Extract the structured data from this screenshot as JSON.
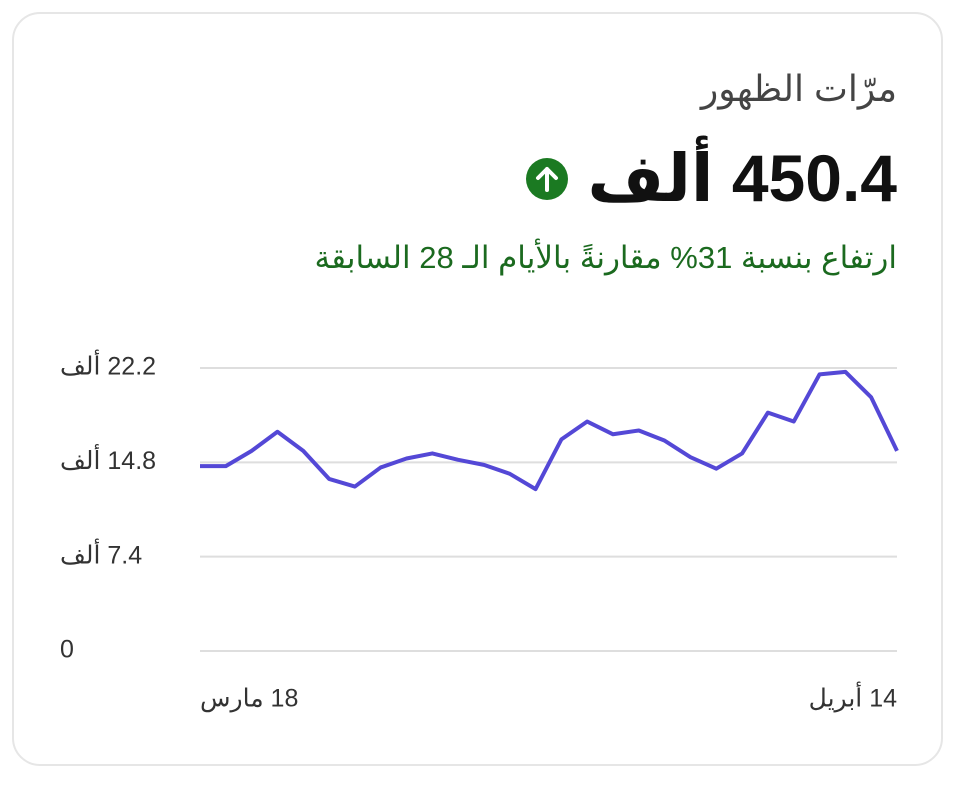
{
  "chart_data": {
    "type": "line",
    "title": "مرّات الظهور",
    "total": "450.4 ألف",
    "change_text": "ارتفاع بنسبة 31% مقارنةً بالأيام الـ 28 السابقة",
    "categories": [
      "18 مارس",
      null,
      null,
      null,
      null,
      null,
      null,
      null,
      null,
      null,
      null,
      null,
      null,
      null,
      null,
      null,
      null,
      null,
      null,
      null,
      null,
      null,
      null,
      null,
      null,
      null,
      null,
      "14 أبريل"
    ],
    "series": [
      {
        "name": "مرّات الظهور",
        "color": "#5448d6",
        "values": [
          14.5,
          14.5,
          15.7,
          17.2,
          15.7,
          13.5,
          12.9,
          14.4,
          15.1,
          15.5,
          15.0,
          14.6,
          13.9,
          12.7,
          16.6,
          18.0,
          17.0,
          17.3,
          16.5,
          15.2,
          14.3,
          15.5,
          18.7,
          18.0,
          21.7,
          21.9,
          19.9,
          15.7
        ]
      }
    ],
    "ylim": [
      0,
      22.2
    ],
    "yticks": [
      0,
      {
        "value": 7.4,
        "label": "7.4 ألف"
      },
      {
        "value": 14.8,
        "label": "14.8 ألف"
      },
      {
        "value": 22.2,
        "label": "22.2 ألف"
      }
    ],
    "grid": true
  }
}
